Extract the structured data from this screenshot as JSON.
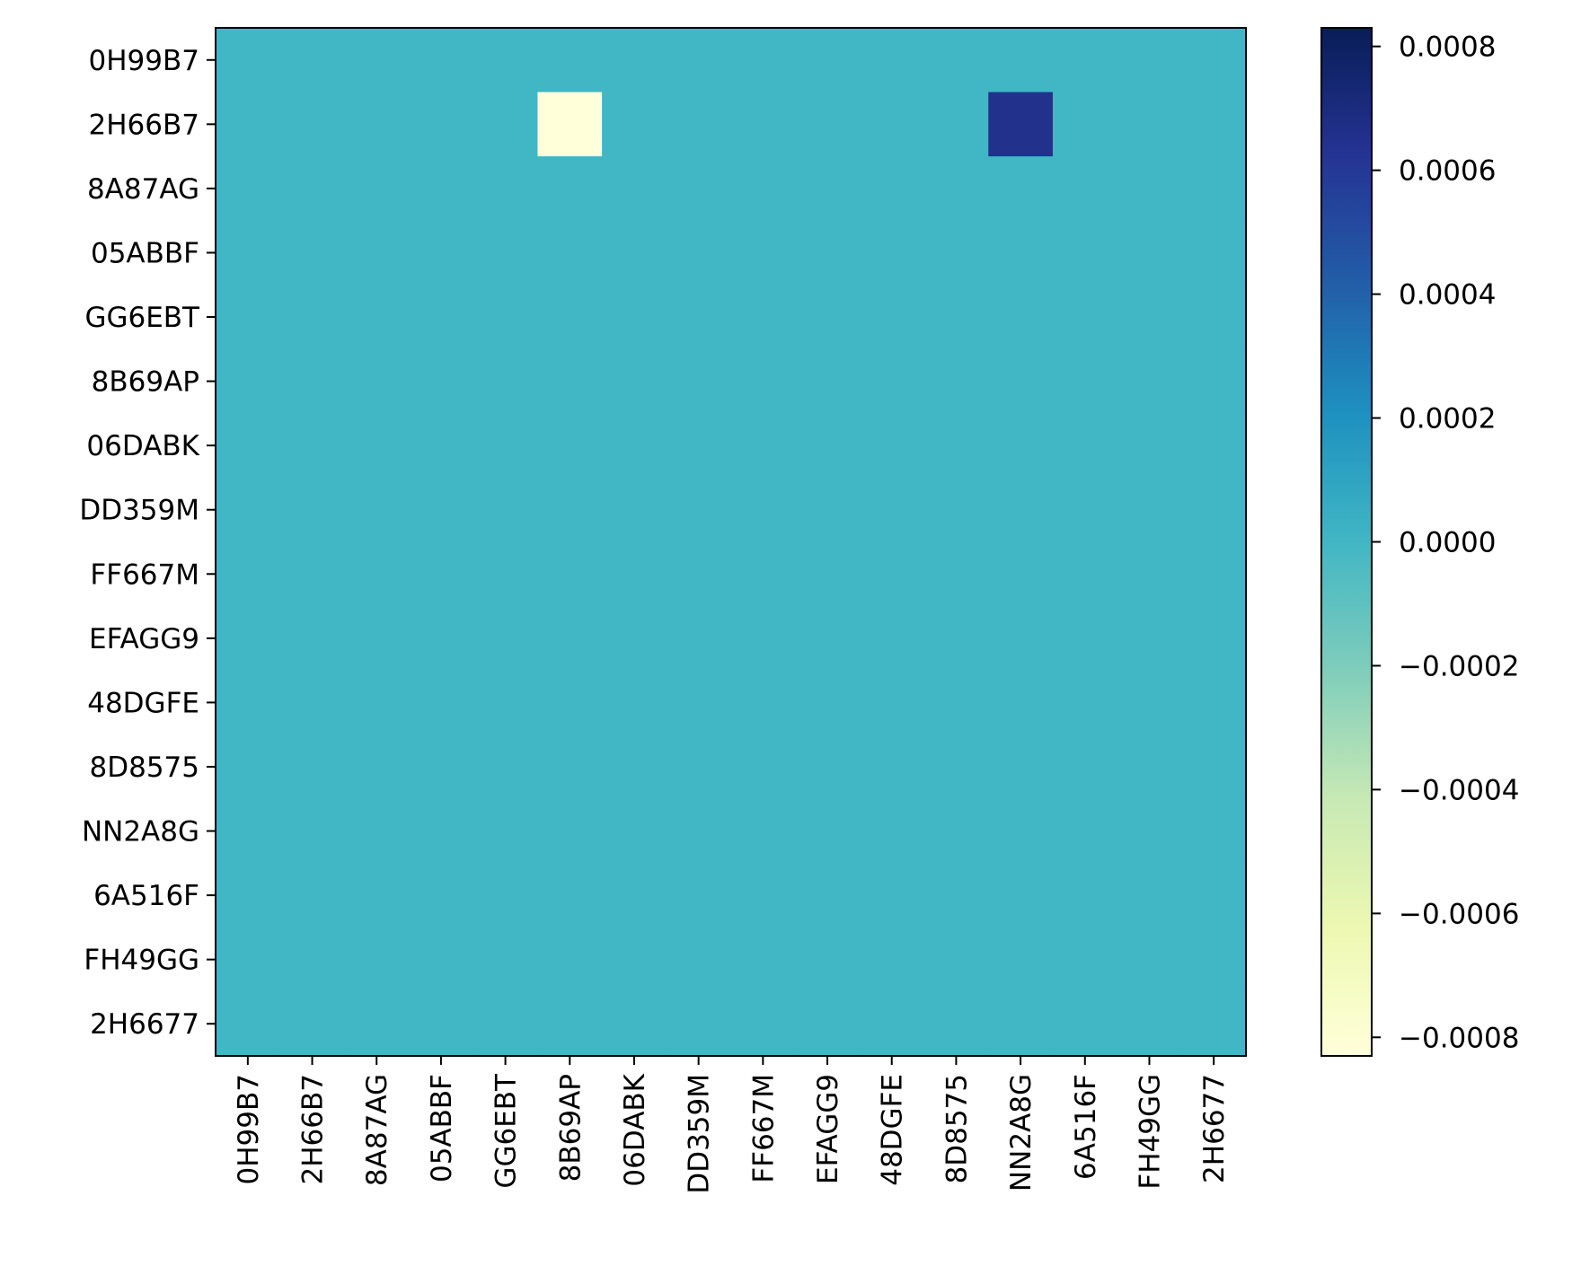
{
  "chart_data": {
    "type": "heatmap",
    "title": "",
    "xlabel": "",
    "ylabel": "",
    "x_categories": [
      "0H99B7",
      "2H66B7",
      "8A87AG",
      "05ABBF",
      "GG6EBT",
      "8B69AP",
      "06DABK",
      "DD359M",
      "FF667M",
      "EFAGG9",
      "48DGFE",
      "8D8575",
      "NN2A8G",
      "6A516F",
      "FH49GG",
      "2H6677"
    ],
    "y_categories": [
      "0H99B7",
      "2H66B7",
      "8A87AG",
      "05ABBF",
      "GG6EBT",
      "8B69AP",
      "06DABK",
      "DD359M",
      "FF667M",
      "EFAGG9",
      "48DGFE",
      "8D8575",
      "NN2A8G",
      "6A516F",
      "FH49GG",
      "2H6677"
    ],
    "values": [
      [
        0,
        0,
        0,
        0,
        0,
        0,
        0,
        0,
        0,
        0,
        0,
        0,
        0,
        0,
        0,
        0
      ],
      [
        0,
        0,
        0,
        0,
        0,
        -0.00083,
        0,
        0,
        0,
        0,
        0,
        0,
        0.00065,
        0,
        0,
        0
      ],
      [
        0,
        0,
        0,
        0,
        0,
        0,
        0,
        0,
        0,
        0,
        0,
        0,
        0,
        0,
        0,
        0
      ],
      [
        0,
        0,
        0,
        0,
        0,
        0,
        0,
        0,
        0,
        0,
        0,
        0,
        0,
        0,
        0,
        0
      ],
      [
        0,
        0,
        0,
        0,
        0,
        0,
        0,
        0,
        0,
        0,
        0,
        0,
        0,
        0,
        0,
        0
      ],
      [
        0,
        0,
        0,
        0,
        0,
        0,
        0,
        0,
        0,
        0,
        0,
        0,
        0,
        0,
        0,
        0
      ],
      [
        0,
        0,
        0,
        0,
        0,
        0,
        0,
        0,
        0,
        0,
        0,
        0,
        0,
        0,
        0,
        0
      ],
      [
        0,
        0,
        0,
        0,
        0,
        0,
        0,
        0,
        0,
        0,
        0,
        0,
        0,
        0,
        0,
        0
      ],
      [
        0,
        0,
        0,
        0,
        0,
        0,
        0,
        0,
        0,
        0,
        0,
        0,
        0,
        0,
        0,
        0
      ],
      [
        0,
        0,
        0,
        0,
        0,
        0,
        0,
        0,
        0,
        0,
        0,
        0,
        0,
        0,
        0,
        0
      ],
      [
        0,
        0,
        0,
        0,
        0,
        0,
        0,
        0,
        0,
        0,
        0,
        0,
        0,
        0,
        0,
        0
      ],
      [
        0,
        0,
        0,
        0,
        0,
        0,
        0,
        0,
        0,
        0,
        0,
        0,
        0,
        0,
        0,
        0
      ],
      [
        0,
        0,
        0,
        0,
        0,
        0,
        0,
        0,
        0,
        0,
        0,
        0,
        0,
        0,
        0,
        0
      ],
      [
        0,
        0,
        0,
        0,
        0,
        0,
        0,
        0,
        0,
        0,
        0,
        0,
        0,
        0,
        0,
        0
      ],
      [
        0,
        0,
        0,
        0,
        0,
        0,
        0,
        0,
        0,
        0,
        0,
        0,
        0,
        0,
        0,
        0
      ],
      [
        0,
        0,
        0,
        0,
        0,
        0,
        0,
        0,
        0,
        0,
        0,
        0,
        0,
        0,
        0,
        0
      ]
    ],
    "colormap": "YlGnBu",
    "color_range": [
      -0.00083,
      0.00083
    ],
    "colorbar_ticks": [
      0.0008,
      0.0006,
      0.0004,
      0.0002,
      0.0,
      -0.0002,
      -0.0004,
      -0.0006,
      -0.0008
    ],
    "colorbar_tick_labels": [
      "0.0008",
      "0.0006",
      "0.0004",
      "0.0002",
      "0.0000",
      "−0.0002",
      "−0.0004",
      "−0.0006",
      "−0.0008"
    ],
    "colorbar_stops": [
      "#ffffd9",
      "#edf8b1",
      "#c7e9b4",
      "#7fcdbb",
      "#41b6c4",
      "#1d91c0",
      "#225ea8",
      "#253494",
      "#081d58"
    ],
    "grid": false,
    "legend": "colorbar-right"
  }
}
